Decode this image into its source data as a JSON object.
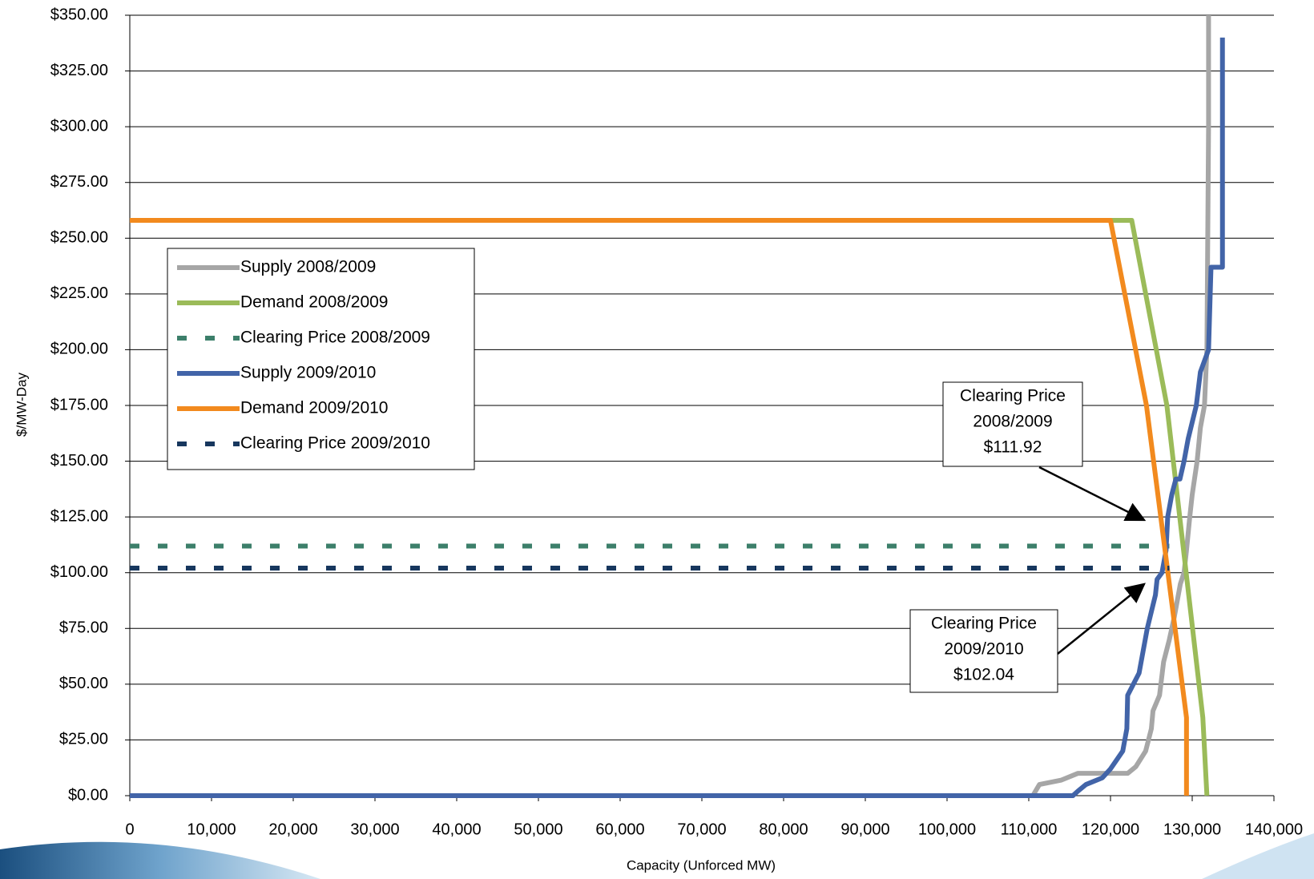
{
  "chart_data": {
    "type": "line",
    "x_label": "Capacity (Unforced MW)",
    "y_label": "$/MW-Day",
    "xlim": [
      0,
      140000
    ],
    "ylim": [
      0,
      350
    ],
    "xticks": [
      0,
      {
        "value": 10000,
        "label": "10,000"
      },
      {
        "value": 20000,
        "label": "20,000"
      },
      {
        "value": 30000,
        "label": "30,000"
      },
      {
        "value": 40000,
        "label": "40,000"
      },
      {
        "value": 50000,
        "label": "50,000"
      },
      {
        "value": 60000,
        "label": "60,000"
      },
      {
        "value": 70000,
        "label": "70,000"
      },
      {
        "value": 80000,
        "label": "80,000"
      },
      {
        "value": 90000,
        "label": "90,000"
      },
      {
        "value": 100000,
        "label": "100,000"
      },
      {
        "value": 110000,
        "label": "110,000"
      },
      {
        "value": 120000,
        "label": "120,000"
      },
      {
        "value": 130000,
        "label": "130,000"
      },
      {
        "value": 140000,
        "label": "140,000"
      }
    ],
    "yticks": [
      {
        "value": 0,
        "label": "$0.00"
      },
      {
        "value": 25,
        "label": "$25.00"
      },
      {
        "value": 50,
        "label": "$50.00"
      },
      {
        "value": 75,
        "label": "$75.00"
      },
      {
        "value": 100,
        "label": "$100.00"
      },
      {
        "value": 125,
        "label": "$125.00"
      },
      {
        "value": 150,
        "label": "$150.00"
      },
      {
        "value": 175,
        "label": "$175.00"
      },
      {
        "value": 200,
        "label": "$200.00"
      },
      {
        "value": 225,
        "label": "$225.00"
      },
      {
        "value": 250,
        "label": "$250.00"
      },
      {
        "value": 275,
        "label": "$275.00"
      },
      {
        "value": 300,
        "label": "$300.00"
      },
      {
        "value": 325,
        "label": "$325.00"
      },
      {
        "value": 350,
        "label": "$350.00"
      }
    ],
    "grid": true,
    "legend": "upper left",
    "series": [
      {
        "name": "Supply 2008/2009",
        "color": "#a6a6a6",
        "dashed": false,
        "x": [
          0,
          110500,
          111300,
          114000,
          116000,
          122100,
          123100,
          124300,
          125000,
          125200,
          126000,
          126500,
          127200,
          127800,
          128550,
          129000,
          129300,
          129700,
          130000,
          130600,
          131000,
          131500,
          131800,
          132000,
          132000
        ],
        "values": [
          0,
          0,
          5,
          7,
          10,
          10,
          13,
          20,
          30,
          38,
          45,
          60,
          70,
          80,
          95,
          100,
          110,
          125,
          135,
          150,
          165,
          175,
          200,
          300,
          350
        ]
      },
      {
        "name": "Demand 2008/2009",
        "color": "#9bbb59",
        "dashed": false,
        "x": [
          0,
          122600,
          126900,
          131300,
          131800
        ],
        "values": [
          258,
          258,
          175,
          35,
          0
        ]
      },
      {
        "name": "Clearing Price 2008/2009",
        "color": "#3c7f6a",
        "dashed": true,
        "x": [
          0,
          127200
        ],
        "values": [
          111.92,
          111.92
        ]
      },
      {
        "name": "Supply 2009/2010",
        "color": "#4264a8",
        "dashed": false,
        "x": [
          0,
          115400,
          116000,
          117000,
          119000,
          120000,
          121500,
          122000,
          122100,
          123500,
          124000,
          124500,
          125500,
          125700,
          126300,
          126800,
          127000,
          127500,
          128000,
          128500,
          129000,
          129500,
          130500,
          131000,
          131500,
          132000,
          132300,
          133700,
          133700
        ],
        "values": [
          0,
          0,
          2,
          5,
          8,
          12,
          20,
          30,
          45,
          55,
          65,
          75,
          90,
          97,
          100,
          110,
          125,
          135,
          142,
          142,
          150,
          160,
          175,
          190,
          195,
          200,
          237,
          237,
          340
        ]
      },
      {
        "name": "Demand 2009/2010",
        "color": "#f28a1e",
        "dashed": false,
        "x": [
          0,
          120000,
          124400,
          129300,
          129300
        ],
        "values": [
          258,
          258,
          175,
          35,
          0
        ]
      },
      {
        "name": "Clearing Price 2009/2010",
        "color": "#17375e",
        "dashed": true,
        "x": [
          0,
          127200
        ],
        "values": [
          102.04,
          102.04
        ]
      }
    ],
    "annotations": [
      {
        "lines": [
          "Clearing Price",
          "2008/2009",
          "$111.92"
        ]
      },
      {
        "lines": [
          "Clearing Price",
          "2009/2010",
          "$102.04"
        ]
      }
    ]
  }
}
